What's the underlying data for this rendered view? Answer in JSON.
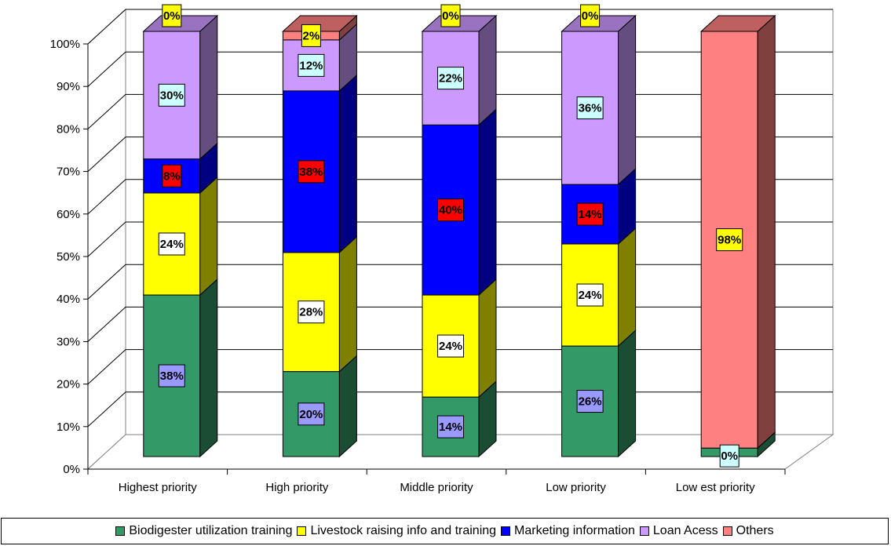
{
  "chart_data": {
    "type": "bar",
    "stacked": true,
    "percent_scale": true,
    "three_d": true,
    "categories": [
      "Highest priority",
      "High priority",
      "Middle priority",
      "Low  priority",
      "Low est priority"
    ],
    "series": [
      {
        "name": "Biodigester utilization training",
        "color": "#339966",
        "label_bg": "#9999ff",
        "values": [
          38,
          20,
          14,
          26,
          2
        ],
        "labels": [
          "38%",
          "20%",
          "14%",
          "26%",
          ""
        ]
      },
      {
        "name": "Livestock raising info and training",
        "color": "#ffff00",
        "label_bg": "#ffffff",
        "values": [
          24,
          28,
          24,
          24,
          0
        ],
        "labels": [
          "24%",
          "28%",
          "24%",
          "24%",
          ""
        ]
      },
      {
        "name": "Marketing information",
        "color": "#0000ff",
        "label_bg": "#ff0000",
        "values": [
          8,
          38,
          40,
          14,
          0
        ],
        "labels": [
          "8%",
          "38%",
          "40%",
          "14%",
          ""
        ]
      },
      {
        "name": "Loan Acess",
        "color": "#cc99ff",
        "label_bg": "#ccffff",
        "values": [
          30,
          12,
          22,
          36,
          0
        ],
        "labels": [
          "30%",
          "12%",
          "22%",
          "36%",
          "0%"
        ]
      },
      {
        "name": "Others",
        "color": "#ff8080",
        "label_bg": "#ffff00",
        "values": [
          0,
          2,
          0,
          0,
          98
        ],
        "labels": [
          "0%",
          "2%",
          "0%",
          "0%",
          "98%"
        ]
      }
    ],
    "y_ticks": [
      "0%",
      "10%",
      "20%",
      "30%",
      "40%",
      "50%",
      "60%",
      "70%",
      "80%",
      "90%",
      "100%"
    ],
    "ylim": [
      0,
      100
    ],
    "grid": true,
    "legend_position": "bottom"
  }
}
